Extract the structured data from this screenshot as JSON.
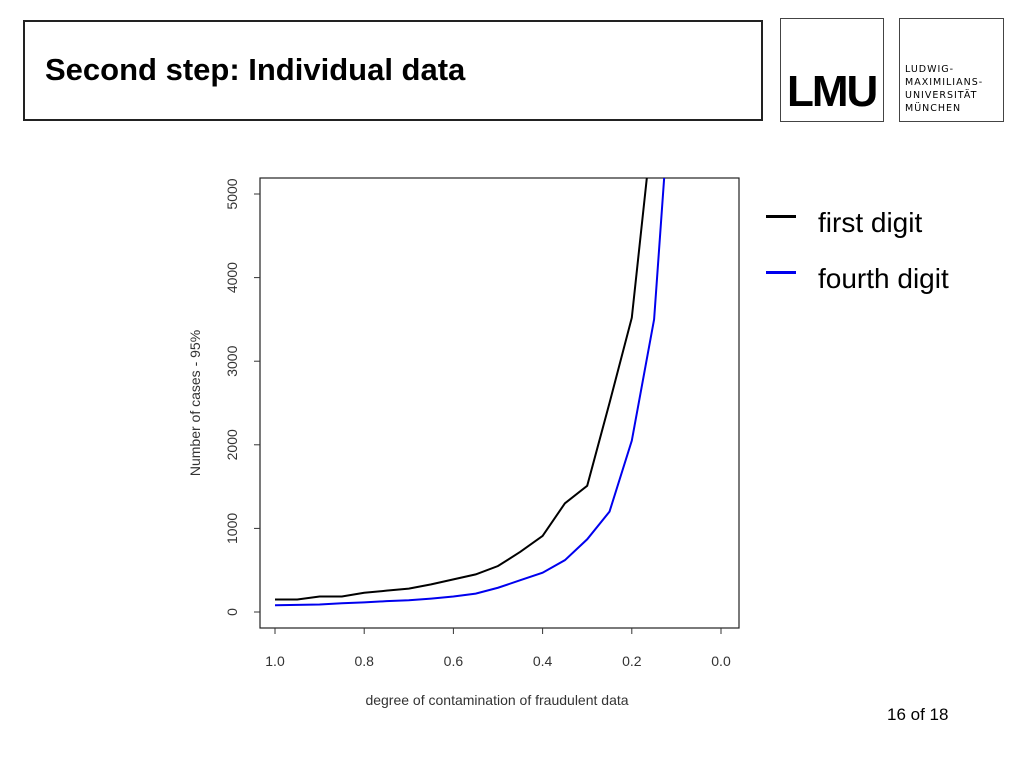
{
  "slide": {
    "title": "Second step: Individual data",
    "page": "16 of 18"
  },
  "logo": {
    "mark": "LMU",
    "lines": [
      "LUDWIG-",
      "MAXIMILIANS-",
      "UNIVERSITÄT",
      "MÜNCHEN"
    ]
  },
  "chart_data": {
    "type": "line",
    "title": "",
    "xlabel": "degree of contamination of fraudulent data",
    "ylabel": "Number of cases - 95%",
    "xlim": [
      1.0,
      0.0
    ],
    "ylim": [
      0,
      5000
    ],
    "xticks": [
      "1.0",
      "0.8",
      "0.6",
      "0.4",
      "0.2",
      "0.0"
    ],
    "yticks": [
      "0",
      "1000",
      "2000",
      "3000",
      "4000",
      "5000"
    ],
    "legend_position": "right-outside",
    "series": [
      {
        "name": "first digit",
        "color": "#000000",
        "x": [
          1.0,
          0.95,
          0.9,
          0.85,
          0.8,
          0.75,
          0.7,
          0.65,
          0.6,
          0.55,
          0.5,
          0.45,
          0.4,
          0.35,
          0.3,
          0.25,
          0.2,
          0.15
        ],
        "y": [
          150,
          150,
          185,
          185,
          230,
          255,
          280,
          330,
          390,
          450,
          550,
          720,
          910,
          1300,
          1510,
          2500,
          3520,
          6000
        ]
      },
      {
        "name": "fourth digit",
        "color": "#0000ee",
        "x": [
          1.0,
          0.95,
          0.9,
          0.85,
          0.8,
          0.75,
          0.7,
          0.65,
          0.6,
          0.55,
          0.5,
          0.45,
          0.4,
          0.35,
          0.3,
          0.25,
          0.2,
          0.15,
          0.1
        ],
        "y": [
          80,
          85,
          90,
          105,
          115,
          130,
          140,
          160,
          185,
          220,
          290,
          380,
          470,
          620,
          870,
          1200,
          2050,
          3500,
          7250
        ]
      }
    ]
  }
}
